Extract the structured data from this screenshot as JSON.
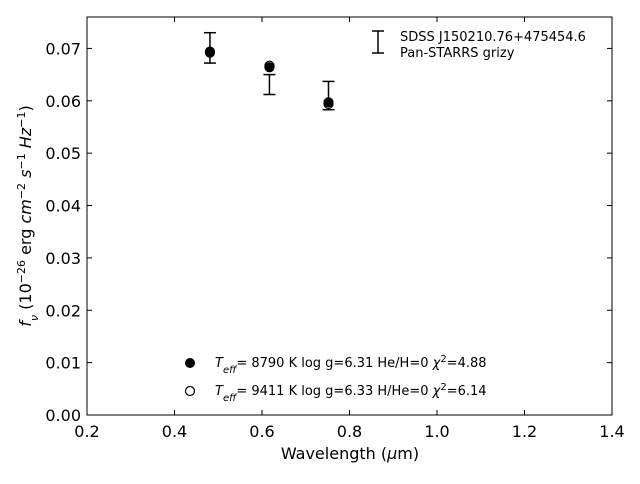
{
  "chart_data": {
    "type": "scatter",
    "title": "",
    "xlabel": "Wavelength (μm)",
    "ylabel": "fν (10⁻²⁶ erg cm⁻² s⁻¹ Hz⁻¹)",
    "xlim": [
      0.2,
      1.4
    ],
    "ylim": [
      0.0,
      0.076
    ],
    "x_ticks": [
      0.2,
      0.4,
      0.6,
      0.8,
      1.0,
      1.2,
      1.4
    ],
    "x_tick_labels": [
      "0.2",
      "0.4",
      "0.6",
      "0.8",
      "1.0",
      "1.2",
      "1.4"
    ],
    "y_ticks": [
      0.0,
      0.01,
      0.02,
      0.03,
      0.04,
      0.05,
      0.06,
      0.07
    ],
    "y_tick_labels": [
      "0.00",
      "0.01",
      "0.02",
      "0.03",
      "0.04",
      "0.05",
      "0.06",
      "0.07"
    ],
    "grid": false,
    "observed": {
      "name": "SDSS J150210.76+475454.6",
      "name_line2": "Pan-STARRS grizy",
      "points": [
        {
          "x": 0.481,
          "y": 0.0701,
          "yerr": 0.0029
        },
        {
          "x": 0.617,
          "y": 0.0631,
          "yerr": 0.0019
        },
        {
          "x": 0.752,
          "y": 0.061,
          "yerr": 0.0027
        }
      ]
    },
    "series": [
      {
        "name": "Teff= 8790 K log g=6.31 He/H=0 χ2=4.88",
        "marker": "filled-circle",
        "points": [
          {
            "x": 0.481,
            "y": 0.0694
          },
          {
            "x": 0.617,
            "y": 0.0664
          },
          {
            "x": 0.752,
            "y": 0.0597
          }
        ]
      },
      {
        "name": "Teff= 9411 K log g=6.33 H/He=0 χ2=6.14",
        "marker": "open-circle",
        "points": [
          {
            "x": 0.481,
            "y": 0.0692
          },
          {
            "x": 0.617,
            "y": 0.0667
          },
          {
            "x": 0.752,
            "y": 0.0594
          }
        ]
      }
    ],
    "legend_placement": "top-right and bottom-center"
  }
}
